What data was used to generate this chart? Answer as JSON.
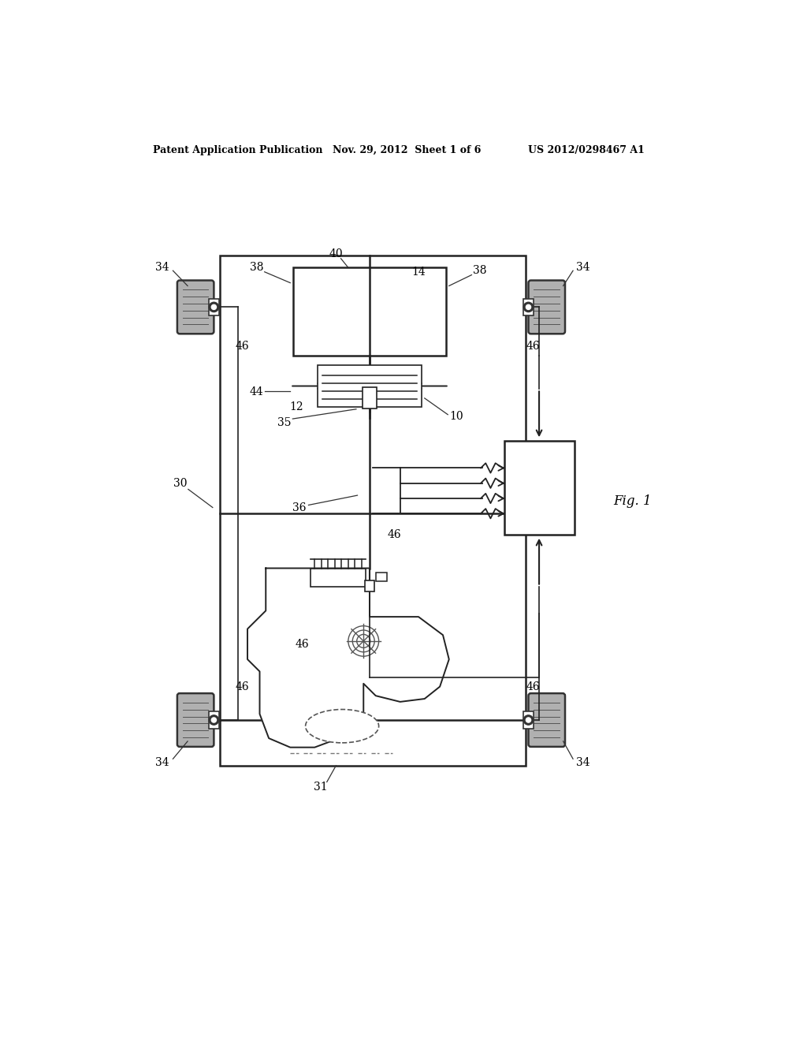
{
  "background_color": "#ffffff",
  "header_left": "Patent Application Publication",
  "header_center": "Nov. 29, 2012  Sheet 1 of 6",
  "header_right": "US 2012/0298467 A1",
  "fig_label": "Fig. 1",
  "line_color": "#222222",
  "label_fontsize": 10,
  "header_fontsize": 9
}
